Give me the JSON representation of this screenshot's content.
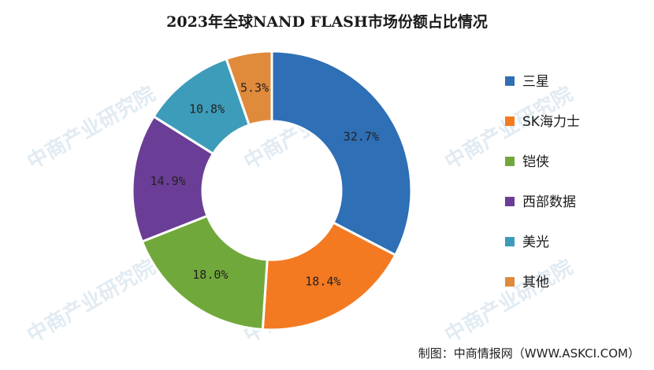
{
  "chart_data": {
    "type": "donut",
    "title": "2023年全球NAND FLASH市场份额占比情况",
    "unit": "%",
    "categories": [
      "三星",
      "SK海力士",
      "铠侠",
      "西部数据",
      "美光",
      "其他"
    ],
    "values": [
      32.7,
      18.4,
      18.0,
      14.9,
      10.8,
      5.3
    ],
    "labels": [
      "32.7%",
      "18.4%",
      "18.0%",
      "14.9%",
      "10.8%",
      "5.3%"
    ],
    "colors": [
      "#2e6fb5",
      "#f37a21",
      "#71a83c",
      "#6a3e96",
      "#3d9cb9",
      "#e08a3c"
    ],
    "legend_position": "right"
  },
  "watermark": "中商产业研究院",
  "source": "制图：中商情报网（WWW.ASKCI.COM）"
}
